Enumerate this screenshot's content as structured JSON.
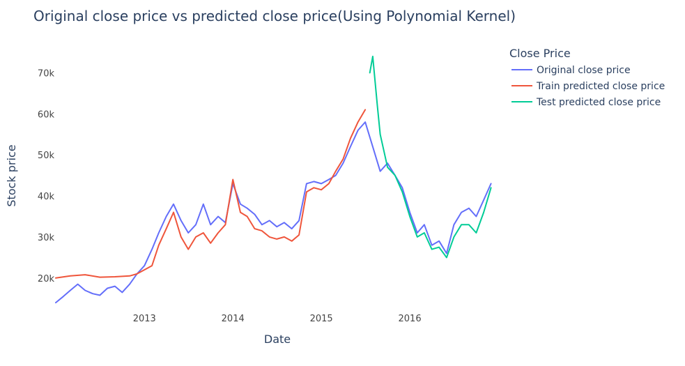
{
  "chart_data": {
    "type": "line",
    "title": "Original close price vs predicted close price(Using Polynomial Kernel)",
    "xlabel": "Date",
    "ylabel": "Stock price",
    "xlim": [
      "2012-01-01",
      "2016-12-31"
    ],
    "ylim": [
      13000,
      75000
    ],
    "x_ticks": [
      "2013",
      "2014",
      "2015",
      "2016"
    ],
    "y_ticks": [
      20000,
      30000,
      40000,
      50000,
      60000,
      70000
    ],
    "y_tick_labels": [
      "20k",
      "30k",
      "40k",
      "50k",
      "60k",
      "70k"
    ],
    "grid": false,
    "legend": {
      "title": "Close Price",
      "placement": "top-right"
    },
    "series": [
      {
        "name": "Original close price",
        "color": "#636efa",
        "points": [
          [
            "2012-01-01",
            14000
          ],
          [
            "2012-02-01",
            15500
          ],
          [
            "2012-03-01",
            17000
          ],
          [
            "2012-04-01",
            18500
          ],
          [
            "2012-05-01",
            17000
          ],
          [
            "2012-06-01",
            16200
          ],
          [
            "2012-07-01",
            15800
          ],
          [
            "2012-08-01",
            17500
          ],
          [
            "2012-09-01",
            18000
          ],
          [
            "2012-10-01",
            16500
          ],
          [
            "2012-11-01",
            18500
          ],
          [
            "2012-12-01",
            21000
          ],
          [
            "2013-01-01",
            23000
          ],
          [
            "2013-02-01",
            27000
          ],
          [
            "2013-03-01",
            31000
          ],
          [
            "2013-04-01",
            35000
          ],
          [
            "2013-05-01",
            38000
          ],
          [
            "2013-06-01",
            34000
          ],
          [
            "2013-07-01",
            31000
          ],
          [
            "2013-08-01",
            33000
          ],
          [
            "2013-09-01",
            38000
          ],
          [
            "2013-10-01",
            33000
          ],
          [
            "2013-11-01",
            35000
          ],
          [
            "2013-12-01",
            33500
          ],
          [
            "2014-01-01",
            43000
          ],
          [
            "2014-02-01",
            38000
          ],
          [
            "2014-03-01",
            37000
          ],
          [
            "2014-04-01",
            35500
          ],
          [
            "2014-05-01",
            33000
          ],
          [
            "2014-06-01",
            34000
          ],
          [
            "2014-07-01",
            32500
          ],
          [
            "2014-08-01",
            33500
          ],
          [
            "2014-09-01",
            32000
          ],
          [
            "2014-10-01",
            34000
          ],
          [
            "2014-11-01",
            43000
          ],
          [
            "2014-12-01",
            43500
          ],
          [
            "2015-01-01",
            43000
          ],
          [
            "2015-02-01",
            44000
          ],
          [
            "2015-03-01",
            45000
          ],
          [
            "2015-04-01",
            48000
          ],
          [
            "2015-05-01",
            52000
          ],
          [
            "2015-06-01",
            56000
          ],
          [
            "2015-07-01",
            58000
          ],
          [
            "2015-08-01",
            52000
          ],
          [
            "2015-09-01",
            46000
          ],
          [
            "2015-10-01",
            48000
          ],
          [
            "2015-11-01",
            45000
          ],
          [
            "2015-12-01",
            42000
          ],
          [
            "2016-01-01",
            36000
          ],
          [
            "2016-02-01",
            31000
          ],
          [
            "2016-03-01",
            33000
          ],
          [
            "2016-04-01",
            28000
          ],
          [
            "2016-05-01",
            29000
          ],
          [
            "2016-06-01",
            26000
          ],
          [
            "2016-07-01",
            33000
          ],
          [
            "2016-08-01",
            36000
          ],
          [
            "2016-09-01",
            37000
          ],
          [
            "2016-10-01",
            35000
          ],
          [
            "2016-11-01",
            39000
          ],
          [
            "2016-12-01",
            43000
          ]
        ]
      },
      {
        "name": "Train predicted close price",
        "color": "#ef553b",
        "points": [
          [
            "2012-01-01",
            20000
          ],
          [
            "2012-03-01",
            20500
          ],
          [
            "2012-05-01",
            20800
          ],
          [
            "2012-07-01",
            20200
          ],
          [
            "2012-09-01",
            20300
          ],
          [
            "2012-11-01",
            20500
          ],
          [
            "2012-12-01",
            21000
          ],
          [
            "2013-01-01",
            22000
          ],
          [
            "2013-02-01",
            23000
          ],
          [
            "2013-03-01",
            28000
          ],
          [
            "2013-04-01",
            32000
          ],
          [
            "2013-05-01",
            36000
          ],
          [
            "2013-06-01",
            30000
          ],
          [
            "2013-07-01",
            27000
          ],
          [
            "2013-08-01",
            30000
          ],
          [
            "2013-09-01",
            31000
          ],
          [
            "2013-10-01",
            28500
          ],
          [
            "2013-11-01",
            31000
          ],
          [
            "2013-12-01",
            33000
          ],
          [
            "2014-01-01",
            44000
          ],
          [
            "2014-02-01",
            36000
          ],
          [
            "2014-03-01",
            35000
          ],
          [
            "2014-04-01",
            32000
          ],
          [
            "2014-05-01",
            31500
          ],
          [
            "2014-06-01",
            30000
          ],
          [
            "2014-07-01",
            29500
          ],
          [
            "2014-08-01",
            30000
          ],
          [
            "2014-09-01",
            29000
          ],
          [
            "2014-10-01",
            30500
          ],
          [
            "2014-11-01",
            41000
          ],
          [
            "2014-12-01",
            42000
          ],
          [
            "2015-01-01",
            41500
          ],
          [
            "2015-02-01",
            43000
          ],
          [
            "2015-03-01",
            46000
          ],
          [
            "2015-04-01",
            49000
          ],
          [
            "2015-05-01",
            54000
          ],
          [
            "2015-06-01",
            58000
          ],
          [
            "2015-07-01",
            61000
          ]
        ]
      },
      {
        "name": "Test predicted close price",
        "color": "#00cc96",
        "points": [
          [
            "2015-07-20",
            70000
          ],
          [
            "2015-08-01",
            74000
          ],
          [
            "2015-08-20",
            62000
          ],
          [
            "2015-09-01",
            55000
          ],
          [
            "2015-10-01",
            47000
          ],
          [
            "2015-11-01",
            45000
          ],
          [
            "2015-12-01",
            41000
          ],
          [
            "2016-01-01",
            35000
          ],
          [
            "2016-02-01",
            30000
          ],
          [
            "2016-03-01",
            31000
          ],
          [
            "2016-04-01",
            27000
          ],
          [
            "2016-05-01",
            27500
          ],
          [
            "2016-06-01",
            25000
          ],
          [
            "2016-07-01",
            30000
          ],
          [
            "2016-08-01",
            33000
          ],
          [
            "2016-09-01",
            33000
          ],
          [
            "2016-10-01",
            31000
          ],
          [
            "2016-11-01",
            36000
          ],
          [
            "2016-12-01",
            42000
          ]
        ]
      }
    ]
  }
}
